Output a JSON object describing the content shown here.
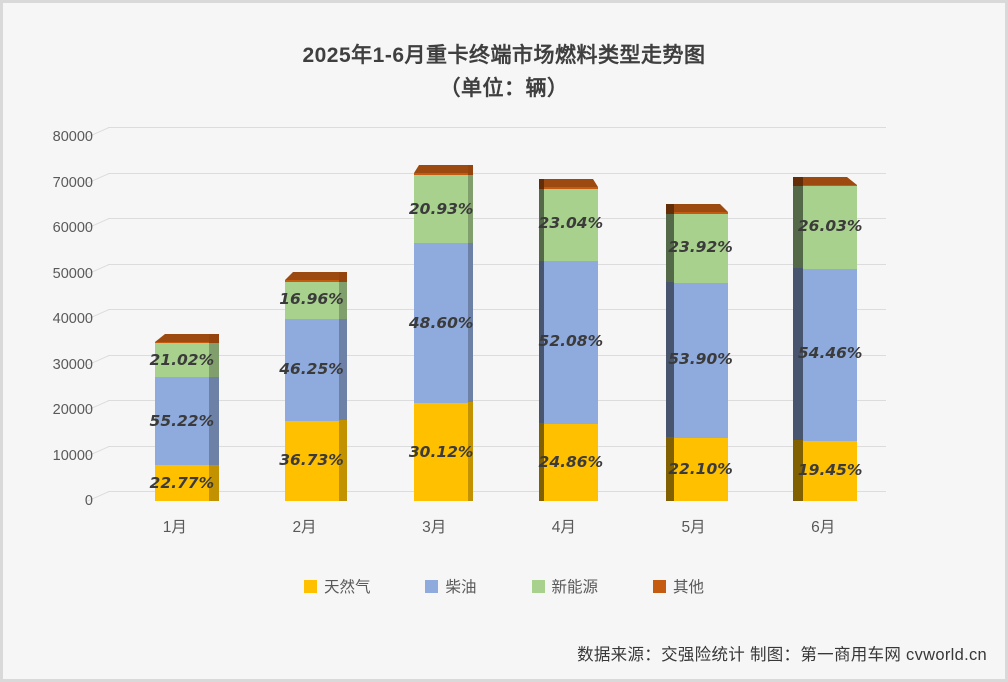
{
  "panel": {
    "background": "#f6f6f6",
    "border_color": "#d9d9d9"
  },
  "title": {
    "line1": "2025年1-6月重卡终端市场燃料类型走势图",
    "line2": "（单位：辆）"
  },
  "footer": {
    "text": "数据来源：交强险统计 制图：第一商用车网 cvworld.cn"
  },
  "legend": {
    "items": [
      {
        "label": "天然气",
        "color": "#FFC000"
      },
      {
        "label": "柴油",
        "color": "#8FAADC"
      },
      {
        "label": "新能源",
        "color": "#A9D18E"
      },
      {
        "label": "其他",
        "color": "#C55A11"
      }
    ]
  },
  "chart_data": {
    "type": "bar",
    "stacked": true,
    "style": "3d-column",
    "title": "2025年1-6月重卡终端市场燃料类型走势图",
    "subtitle": "（单位：辆）",
    "categories": [
      "1月",
      "2月",
      "3月",
      "4月",
      "5月",
      "6月"
    ],
    "y_axis": {
      "min": 0,
      "max": 80000,
      "tick_step": 10000,
      "ticks": [
        0,
        10000,
        20000,
        30000,
        40000,
        50000,
        60000,
        70000,
        80000
      ]
    },
    "grid": true,
    "legend_position": "bottom",
    "series": [
      {
        "name": "天然气",
        "semantic": "natural-gas",
        "color": "#FFC000",
        "pct": [
          22.77,
          36.73,
          30.12,
          24.86,
          22.1,
          19.45
        ],
        "labeled": true
      },
      {
        "name": "柴油",
        "semantic": "diesel",
        "color": "#8FAADC",
        "pct": [
          55.22,
          46.25,
          48.6,
          52.08,
          53.9,
          54.46
        ],
        "labeled": true
      },
      {
        "name": "新能源",
        "semantic": "new-energy",
        "color": "#A9D18E",
        "pct": [
          21.02,
          16.96,
          20.93,
          23.04,
          23.92,
          26.03
        ],
        "labeled": true
      },
      {
        "name": "其他",
        "semantic": "other",
        "color": "#C55A11",
        "cap_color": "#9C4A10",
        "pct": [
          0.99,
          0.06,
          0.35,
          0.02,
          0.08,
          0.06
        ],
        "labeled": false,
        "note": "remainder, unlabeled in chart"
      }
    ],
    "totals_approx_units": [
      35000,
      48500,
      72000,
      69000,
      63500,
      69500
    ]
  }
}
